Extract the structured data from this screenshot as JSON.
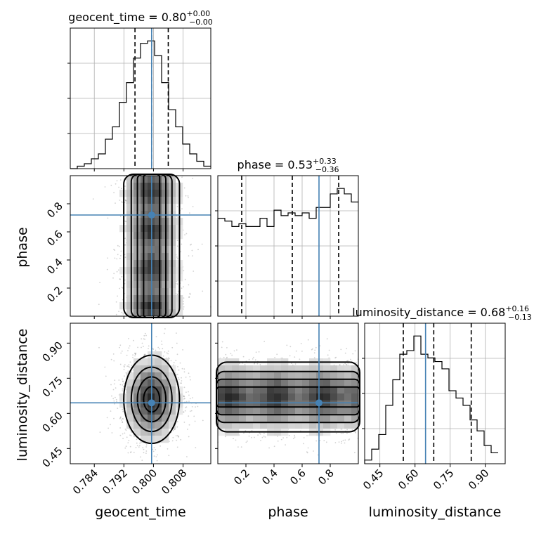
{
  "chart_data": {
    "type": "corner",
    "parameters": [
      "geocent_time",
      "phase",
      "luminosity_distance"
    ],
    "ranges": {
      "geocent_time": [
        0.7775,
        0.8155
      ],
      "phase": [
        0.0,
        1.0
      ],
      "luminosity_distance": [
        0.385,
        0.985
      ]
    },
    "truths": {
      "geocent_time": 0.7995,
      "phase": 0.72,
      "luminosity_distance": 0.645
    },
    "ticks": {
      "geocent_time": [
        "0.784",
        "0.792",
        "0.800",
        "0.808"
      ],
      "phase": [
        "0.2",
        "0.4",
        "0.6",
        "0.8"
      ],
      "luminosity_distance": [
        "0.45",
        "0.60",
        "0.75",
        "0.90"
      ]
    },
    "titles": [
      {
        "param": "geocent_time",
        "text": "geocent_time = 0.80",
        "plus": "+0.00",
        "minus": "−0.00"
      },
      {
        "param": "phase",
        "text": "phase = 0.53",
        "plus": "+0.33",
        "minus": "−0.36"
      },
      {
        "param": "luminosity_distance",
        "text": "luminosity_distance = 0.68",
        "plus": "+0.16",
        "minus": "−0.13"
      }
    ],
    "quantiles": {
      "geocent_time": [
        0.795,
        0.7995,
        0.804
      ],
      "phase": [
        0.17,
        0.53,
        0.86
      ],
      "luminosity_distance": [
        0.55,
        0.68,
        0.84
      ]
    },
    "histograms": {
      "geocent_time": {
        "edges_start": 0.7775,
        "bin_width": 0.0019,
        "counts": [
          0,
          1,
          2,
          4,
          6,
          12,
          17,
          27,
          35,
          45,
          51,
          52,
          46,
          35,
          24,
          17,
          10,
          6,
          3,
          1
        ]
      },
      "phase": {
        "edges_start": 0.0,
        "bin_width": 0.05,
        "counts": [
          36,
          35,
          33,
          34,
          33,
          33,
          36,
          33,
          39,
          37,
          38,
          37,
          38,
          36,
          40,
          40,
          45,
          47,
          45,
          42
        ]
      },
      "luminosity_distance": {
        "edges_start": 0.385,
        "bin_width": 0.03,
        "counts": [
          1,
          4,
          8,
          16,
          23,
          30,
          31,
          35,
          30,
          29,
          28,
          26,
          20,
          18,
          16,
          12,
          9,
          5,
          3
        ]
      }
    },
    "grid": true
  },
  "labels": {
    "x0": "geocent_time",
    "x1": "phase",
    "x2": "luminosity_distance",
    "y1": "phase",
    "y2": "luminosity_distance"
  }
}
